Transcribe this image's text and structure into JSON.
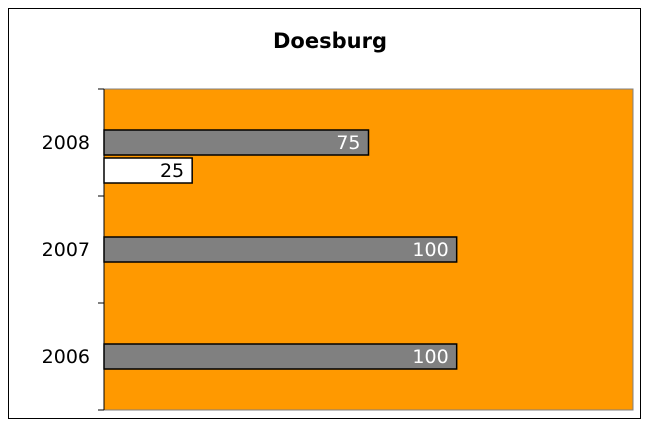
{
  "chart_data": {
    "type": "bar",
    "orientation": "horizontal",
    "title": "Doesburg",
    "categories": [
      "2006",
      "2007",
      "2008"
    ],
    "series": [
      {
        "color": "#808080",
        "values": [
          100,
          100,
          75
        ],
        "label_color": "#ffffff"
      },
      {
        "color": "#ffffff",
        "values": [
          null,
          null,
          25
        ],
        "label_color": "#000000"
      }
    ],
    "xlim": [
      0,
      150
    ],
    "plot_color": "#ff9900"
  }
}
